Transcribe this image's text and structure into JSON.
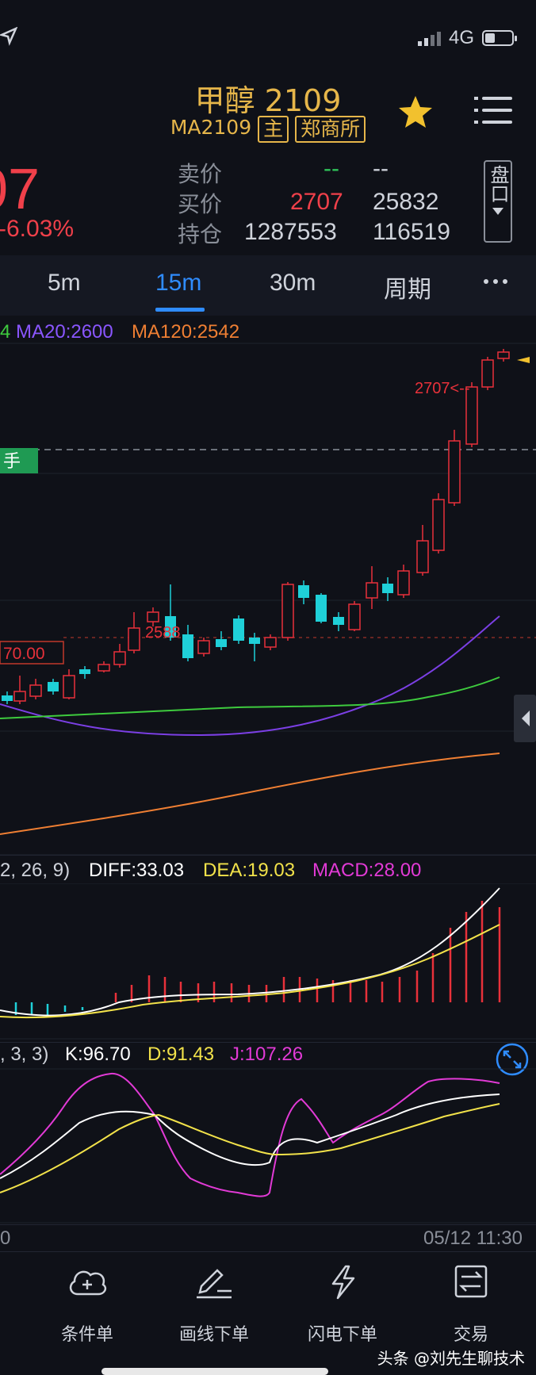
{
  "status": {
    "network": "4G"
  },
  "header": {
    "title": "甲醇 2109",
    "contract": "MA2109",
    "tag_main": "主",
    "tag_exchange": "郑商所",
    "favorite_icon": "star-icon",
    "menu_icon": "menu-icon"
  },
  "quote": {
    "last_price_partial": "07",
    "change_pct_partial": "-6.03%",
    "sell_label": "卖价",
    "buy_label": "买价",
    "oi_label": "持仓",
    "sell_price": "--",
    "sell_volume": "--",
    "buy_price": "2707",
    "buy_volume": "25832",
    "open_interest": "1287553",
    "oi_change": "116519",
    "pan_button": "盘口"
  },
  "tabs": [
    "5m",
    "15m",
    "30m",
    "周期"
  ],
  "active_tab": "15m",
  "more_icon": "more-icon",
  "ma_legend": {
    "first_partial": "4",
    "ma20": "MA20:2600",
    "ma120": "MA120:2542"
  },
  "kline": {
    "last_price_label": "2707<--",
    "high_label": "2588",
    "line_label": "70.00",
    "order_tag": "手",
    "colors": {
      "up": "#e8313a",
      "down": "#1fd0d8",
      "ma20": "#7b3fe4",
      "ma60": "#3ecb3e",
      "ma120": "#ef7f33"
    }
  },
  "macd": {
    "params_partial": "2, 26, 9)",
    "diff": "DIFF:33.03",
    "dea": "DEA:19.03",
    "macd": "MACD:28.00"
  },
  "kdj": {
    "params_partial": ", 3, 3)",
    "k": "K:96.70",
    "d": "D:91.43",
    "j": "J:107.26"
  },
  "time_axis": {
    "left_partial": "0",
    "right": "05/12 11:30"
  },
  "toolbar": [
    {
      "label": "条件单",
      "icon": "cloud-plus-icon"
    },
    {
      "label": "画线下单",
      "icon": "pen-line-icon"
    },
    {
      "label": "闪电下单",
      "icon": "lightning-icon"
    },
    {
      "label": "交易",
      "icon": "exchange-icon"
    }
  ],
  "watermark": "头条 @刘先生聊技术"
}
